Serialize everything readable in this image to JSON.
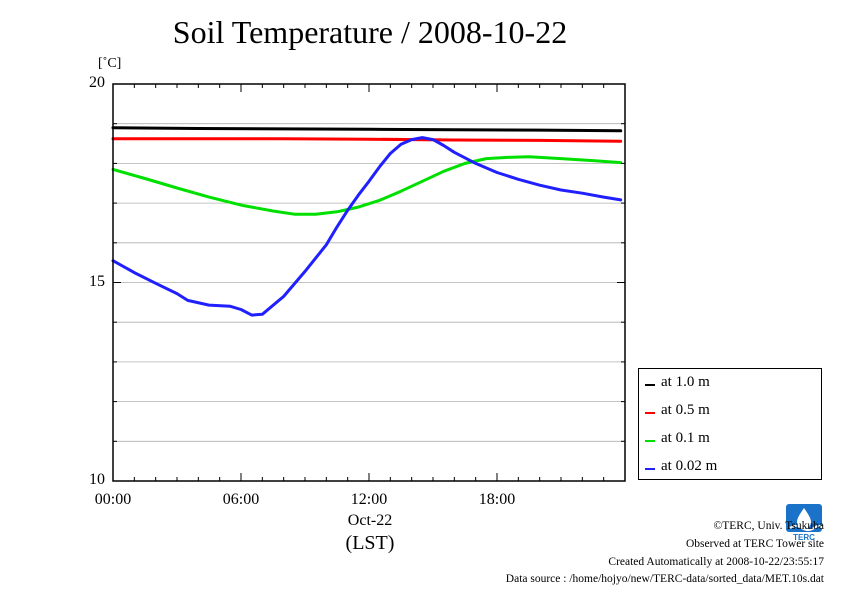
{
  "page": {
    "title": "Soil Temperature / 2008-10-22",
    "unit_label": "[˚C]",
    "x_date_label": "Oct-22",
    "x_timezone_label": "(LST)",
    "legend_order": [
      "at 1.0 m",
      "at 0.5 m",
      "at 0.1 m",
      "at 0.02 m"
    ],
    "footer": {
      "copyright": "©TERC, Univ. Tsukuba",
      "site": "Observed at TERC Tower site",
      "created": "Created Automatically at 2008-10-22/23:55:17",
      "source": "Data source : /home/hojyo/new/TERC-data/sorted_data/MET.10s.dat"
    },
    "logo_text": "TERC",
    "logo_color": "#1a73c8"
  },
  "chart_data": {
    "type": "line",
    "title": "Soil Temperature / 2008-10-22",
    "xlabel": "(LST)",
    "ylabel": "[˚C]",
    "xlim": [
      0,
      24
    ],
    "ylim": [
      10,
      20
    ],
    "x_ticks": [
      0,
      6,
      12,
      18
    ],
    "x_tick_labels": [
      "00:00",
      "06:00",
      "12:00",
      "18:00"
    ],
    "y_ticks": [
      10,
      15,
      20
    ],
    "y_tick_labels": [
      "10",
      "15",
      "20"
    ],
    "grid": true,
    "grid_y_values": [
      11,
      12,
      13,
      14,
      15,
      16,
      17,
      18,
      19,
      20
    ],
    "legend_position": "right",
    "series": [
      {
        "name": "at 1.0 m",
        "color": "#000000",
        "x": [
          0,
          4,
          8,
          12,
          16,
          20,
          23.8
        ],
        "y": [
          18.9,
          18.88,
          18.87,
          18.86,
          18.85,
          18.84,
          18.82
        ]
      },
      {
        "name": "at 0.5 m",
        "color": "#ff0000",
        "x": [
          0,
          4,
          8,
          12,
          16,
          20,
          23.8
        ],
        "y": [
          18.62,
          18.62,
          18.62,
          18.61,
          18.59,
          18.58,
          18.56
        ]
      },
      {
        "name": "at 0.1 m",
        "color": "#00e000",
        "x": [
          0,
          1.5,
          3,
          4.5,
          6,
          7.5,
          8.5,
          9.5,
          10.5,
          11.5,
          12.5,
          13.5,
          14.5,
          15.5,
          16.5,
          17.5,
          18.5,
          19.5,
          21,
          22.5,
          23.8
        ],
        "y": [
          17.85,
          17.62,
          17.38,
          17.15,
          16.95,
          16.8,
          16.72,
          16.72,
          16.78,
          16.9,
          17.07,
          17.3,
          17.55,
          17.8,
          18.0,
          18.12,
          18.15,
          18.17,
          18.12,
          18.07,
          18.02
        ]
      },
      {
        "name": "at 0.02 m",
        "color": "#2020ff",
        "x": [
          0,
          1,
          2,
          3,
          3.5,
          4.5,
          5.5,
          6,
          6.5,
          7,
          8,
          9,
          10,
          10.5,
          11,
          11.5,
          12,
          12.5,
          13,
          13.5,
          14,
          14.5,
          15,
          15.5,
          16,
          17,
          18,
          19,
          20,
          21,
          22,
          23,
          23.8
        ],
        "y": [
          15.55,
          15.25,
          14.98,
          14.72,
          14.55,
          14.43,
          14.4,
          14.32,
          14.18,
          14.2,
          14.65,
          15.28,
          15.95,
          16.4,
          16.82,
          17.2,
          17.55,
          17.92,
          18.25,
          18.48,
          18.6,
          18.65,
          18.6,
          18.45,
          18.28,
          18.0,
          17.77,
          17.6,
          17.45,
          17.33,
          17.25,
          17.15,
          17.08
        ]
      }
    ]
  }
}
